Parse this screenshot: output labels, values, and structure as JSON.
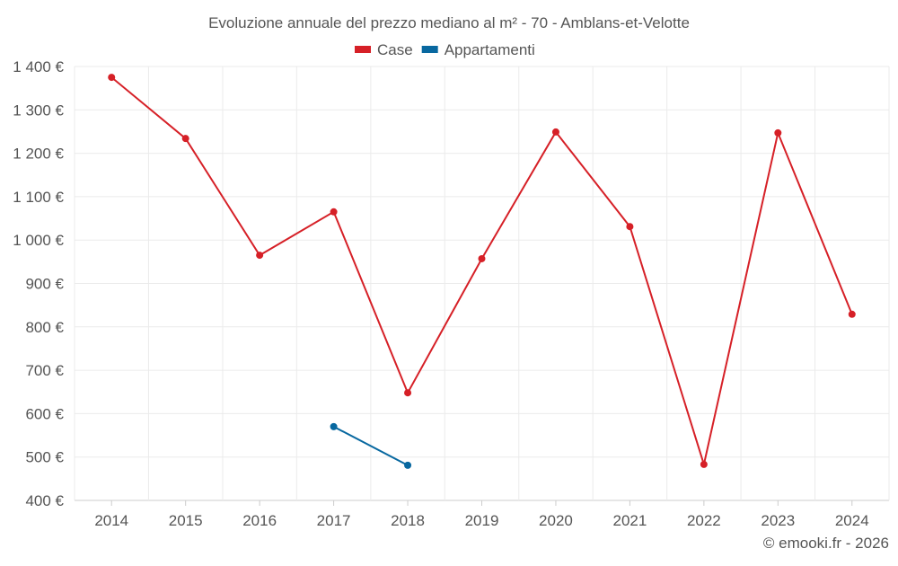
{
  "chart_data": {
    "type": "line",
    "title": "Evoluzione annuale del prezzo mediano al m² - 70 - Amblans-et-Velotte",
    "categories": [
      "2014",
      "2015",
      "2016",
      "2017",
      "2018",
      "2019",
      "2020",
      "2021",
      "2022",
      "2023",
      "2024"
    ],
    "series": [
      {
        "name": "Case",
        "color": "#d62027",
        "values": [
          1375,
          1234,
          965,
          1065,
          648,
          957,
          1249,
          1031,
          483,
          1247,
          829
        ]
      },
      {
        "name": "Appartamenti",
        "color": "#0868a0",
        "values": [
          null,
          null,
          null,
          570,
          481,
          null,
          null,
          null,
          null,
          null,
          null
        ]
      }
    ],
    "ylim": [
      400,
      1400
    ],
    "yticks": [
      "400 €",
      "500 €",
      "600 €",
      "700 €",
      "800 €",
      "900 €",
      "1 000 €",
      "1 100 €",
      "1 200 €",
      "1 300 €",
      "1 400 €"
    ],
    "legend_position": "top",
    "grid": true,
    "credit": "© emooki.fr - 2026"
  }
}
